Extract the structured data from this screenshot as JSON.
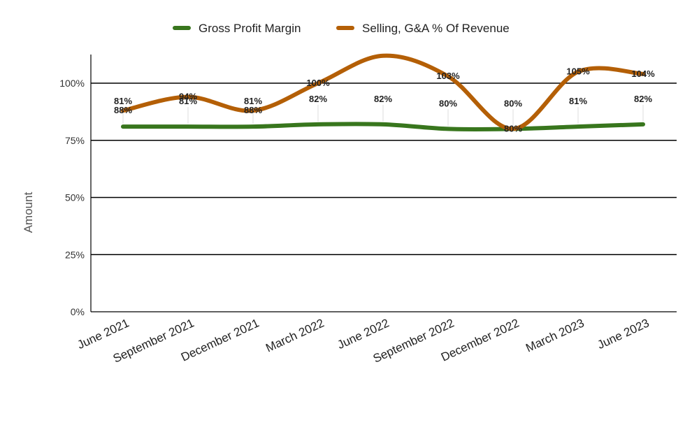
{
  "chart_data": {
    "type": "line",
    "categories": [
      "June 2021",
      "September 2021",
      "December 2021",
      "March 2022",
      "June 2022",
      "September 2022",
      "December 2022",
      "March 2023",
      "June 2023"
    ],
    "series": [
      {
        "name": "Gross Profit Margin",
        "color": "#38761d",
        "values": [
          81,
          81,
          81,
          82,
          82,
          80,
          80,
          81,
          82
        ],
        "labels": [
          "81%",
          "81%",
          "81%",
          "82%",
          "82%",
          "80%",
          "80%",
          "81%",
          "82%"
        ]
      },
      {
        "name": "Selling, G&A % Of Revenue",
        "color": "#b45f06",
        "values": [
          88,
          94,
          88,
          100,
          112,
          103,
          80,
          105,
          104
        ],
        "labels": [
          "88%",
          "94%",
          "88%",
          "100%",
          "",
          "103%",
          "80%",
          "105%",
          "104%"
        ]
      }
    ],
    "ylabel": "Amount",
    "yticks": [
      "0%",
      "25%",
      "50%",
      "75%",
      "100%"
    ],
    "ylim": [
      0,
      100
    ],
    "grid": true,
    "legend_position": "top"
  }
}
